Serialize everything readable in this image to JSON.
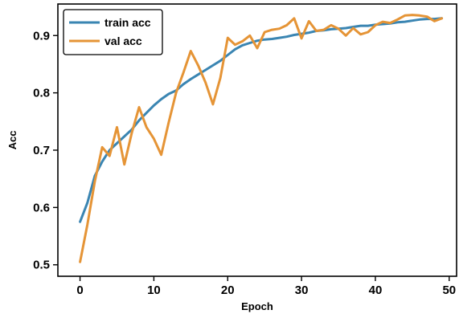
{
  "chart_data": {
    "type": "line",
    "title": "",
    "xlabel": "Epoch",
    "ylabel": "Acc",
    "xlim": [
      -3,
      51
    ],
    "ylim": [
      0.48,
      0.955
    ],
    "xticks": [
      0,
      10,
      20,
      30,
      40,
      50
    ],
    "yticks": [
      0.5,
      0.6,
      0.7,
      0.8,
      0.9
    ],
    "ytick_labels": [
      "0.5",
      "0.6",
      "0.7",
      "0.8",
      "0.9"
    ],
    "grid": false,
    "legend_position": "top-left",
    "x": [
      0,
      1,
      2,
      3,
      4,
      5,
      6,
      7,
      8,
      9,
      10,
      11,
      12,
      13,
      14,
      15,
      16,
      17,
      18,
      19,
      20,
      21,
      22,
      23,
      24,
      25,
      26,
      27,
      28,
      29,
      30,
      31,
      32,
      33,
      34,
      35,
      36,
      37,
      38,
      39,
      40,
      41,
      42,
      43,
      44,
      45,
      46,
      47,
      48,
      49
    ],
    "series": [
      {
        "name": "train acc",
        "color": "#3a85b2",
        "values": [
          0.575,
          0.608,
          0.655,
          0.68,
          0.7,
          0.712,
          0.724,
          0.736,
          0.752,
          0.765,
          0.778,
          0.789,
          0.798,
          0.804,
          0.815,
          0.824,
          0.832,
          0.84,
          0.848,
          0.856,
          0.866,
          0.876,
          0.883,
          0.887,
          0.891,
          0.893,
          0.894,
          0.896,
          0.898,
          0.901,
          0.903,
          0.905,
          0.908,
          0.909,
          0.911,
          0.912,
          0.913,
          0.915,
          0.917,
          0.917,
          0.919,
          0.92,
          0.921,
          0.923,
          0.924,
          0.926,
          0.928,
          0.929,
          0.929,
          0.93
        ]
      },
      {
        "name": "val acc",
        "color": "#e59436",
        "values": [
          0.505,
          0.57,
          0.645,
          0.705,
          0.69,
          0.74,
          0.675,
          0.73,
          0.775,
          0.74,
          0.72,
          0.692,
          0.748,
          0.8,
          0.835,
          0.873,
          0.848,
          0.818,
          0.78,
          0.826,
          0.896,
          0.884,
          0.89,
          0.9,
          0.878,
          0.906,
          0.91,
          0.912,
          0.918,
          0.93,
          0.895,
          0.925,
          0.908,
          0.91,
          0.918,
          0.912,
          0.9,
          0.913,
          0.902,
          0.906,
          0.918,
          0.924,
          0.922,
          0.928,
          0.935,
          0.936,
          0.935,
          0.933,
          0.925,
          0.93
        ]
      }
    ]
  }
}
